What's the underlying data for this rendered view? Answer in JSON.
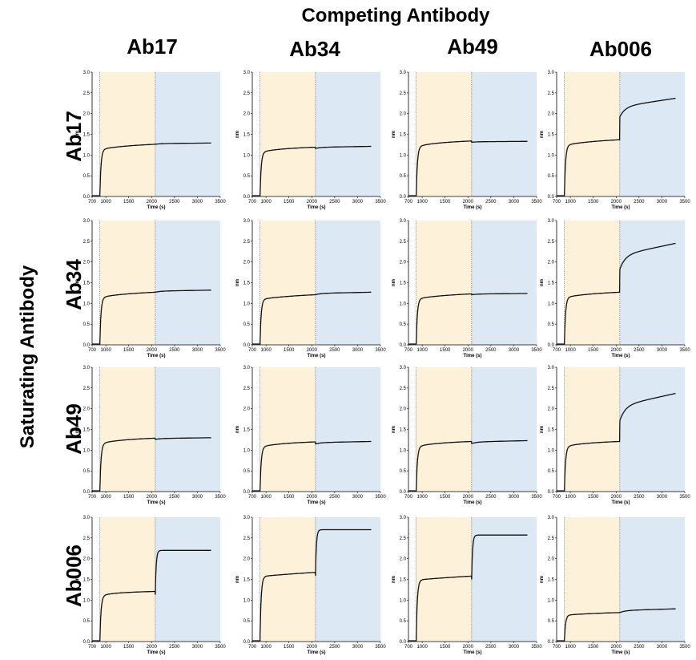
{
  "figure": {
    "top_title": "Competing Antibody",
    "side_title": "Saturating Antibody",
    "columns": [
      "Ab17",
      "Ab34",
      "Ab49",
      "Ab006"
    ],
    "rows": [
      "Ab17",
      "Ab34",
      "Ab49",
      "Ab006"
    ],
    "colors": {
      "association": "#fdf2d9",
      "competition": "#dce8f3",
      "trace": "#111111"
    }
  },
  "chart_data": {
    "type": "line",
    "layout": "4x4 grid",
    "xlabel": "Time (s)",
    "ylabel": "nm",
    "xlim": [
      700,
      3500
    ],
    "ylim": [
      0,
      3.0
    ],
    "xticks": [
      700,
      1000,
      1500,
      2000,
      2500,
      3000,
      3500
    ],
    "yticks": [
      0.0,
      0.5,
      1.0,
      1.5,
      2.0,
      2.5,
      3.0
    ],
    "association_start": 870,
    "competition_start": 2080,
    "data_end": 3300,
    "panels": [
      [
        {
          "saturating": "Ab17",
          "competing": "Ab17",
          "baseline_end": 870,
          "plateau1": 1.26,
          "rise1": 0.008,
          "step2": 0.0,
          "plateau2": 1.29
        },
        {
          "saturating": "Ab17",
          "competing": "Ab34",
          "baseline_end": 870,
          "plateau1": 1.19,
          "rise1": 0.015,
          "step2": -0.03,
          "plateau2": 1.21
        },
        {
          "saturating": "Ab17",
          "competing": "Ab49",
          "baseline_end": 870,
          "plateau1": 1.34,
          "rise1": 0.015,
          "step2": -0.03,
          "plateau2": 1.33
        },
        {
          "saturating": "Ab17",
          "competing": "Ab006",
          "baseline_end": 870,
          "plateau1": 1.37,
          "rise1": 0.006,
          "step2": 0.55,
          "plateau2": 2.37
        }
      ],
      [
        {
          "saturating": "Ab34",
          "competing": "Ab17",
          "baseline_end": 870,
          "plateau1": 1.27,
          "rise1": 0.009,
          "step2": 0.0,
          "plateau2": 1.32
        },
        {
          "saturating": "Ab34",
          "competing": "Ab34",
          "baseline_end": 870,
          "plateau1": 1.21,
          "rise1": 0.004,
          "step2": 0.0,
          "plateau2": 1.27
        },
        {
          "saturating": "Ab34",
          "competing": "Ab49",
          "baseline_end": 870,
          "plateau1": 1.23,
          "rise1": 0.006,
          "step2": -0.02,
          "plateau2": 1.24
        },
        {
          "saturating": "Ab34",
          "competing": "Ab006",
          "baseline_end": 870,
          "plateau1": 1.27,
          "rise1": 0.008,
          "step2": 0.55,
          "plateau2": 2.45
        }
      ],
      [
        {
          "saturating": "Ab49",
          "competing": "Ab17",
          "baseline_end": 870,
          "plateau1": 1.29,
          "rise1": 0.015,
          "step2": -0.03,
          "plateau2": 1.3
        },
        {
          "saturating": "Ab49",
          "competing": "Ab34",
          "baseline_end": 870,
          "plateau1": 1.2,
          "rise1": 0.015,
          "step2": -0.05,
          "plateau2": 1.21
        },
        {
          "saturating": "Ab49",
          "competing": "Ab49",
          "baseline_end": 870,
          "plateau1": 1.21,
          "rise1": 0.015,
          "step2": -0.05,
          "plateau2": 1.23
        },
        {
          "saturating": "Ab49",
          "competing": "Ab006",
          "baseline_end": 870,
          "plateau1": 1.21,
          "rise1": 0.015,
          "step2": 0.5,
          "plateau2": 2.37
        }
      ],
      [
        {
          "saturating": "Ab006",
          "competing": "Ab17",
          "baseline_end": 870,
          "plateau1": 1.21,
          "rise1": 0.11,
          "step2": 0.9,
          "plateau2": 2.2,
          "fast2": true
        },
        {
          "saturating": "Ab006",
          "competing": "Ab34",
          "baseline_end": 870,
          "plateau1": 1.67,
          "rise1": 0.001,
          "step2": 0.8,
          "plateau2": 2.7,
          "fast2": true
        },
        {
          "saturating": "Ab006",
          "competing": "Ab49",
          "baseline_end": 870,
          "plateau1": 1.58,
          "rise1": 0.001,
          "step2": 0.85,
          "plateau2": 2.57,
          "fast2": true
        },
        {
          "saturating": "Ab006",
          "competing": "Ab006",
          "baseline_end": 870,
          "plateau1": 0.7,
          "rise1": 0.004,
          "step2": 0.0,
          "plateau2": 0.79
        }
      ]
    ]
  }
}
